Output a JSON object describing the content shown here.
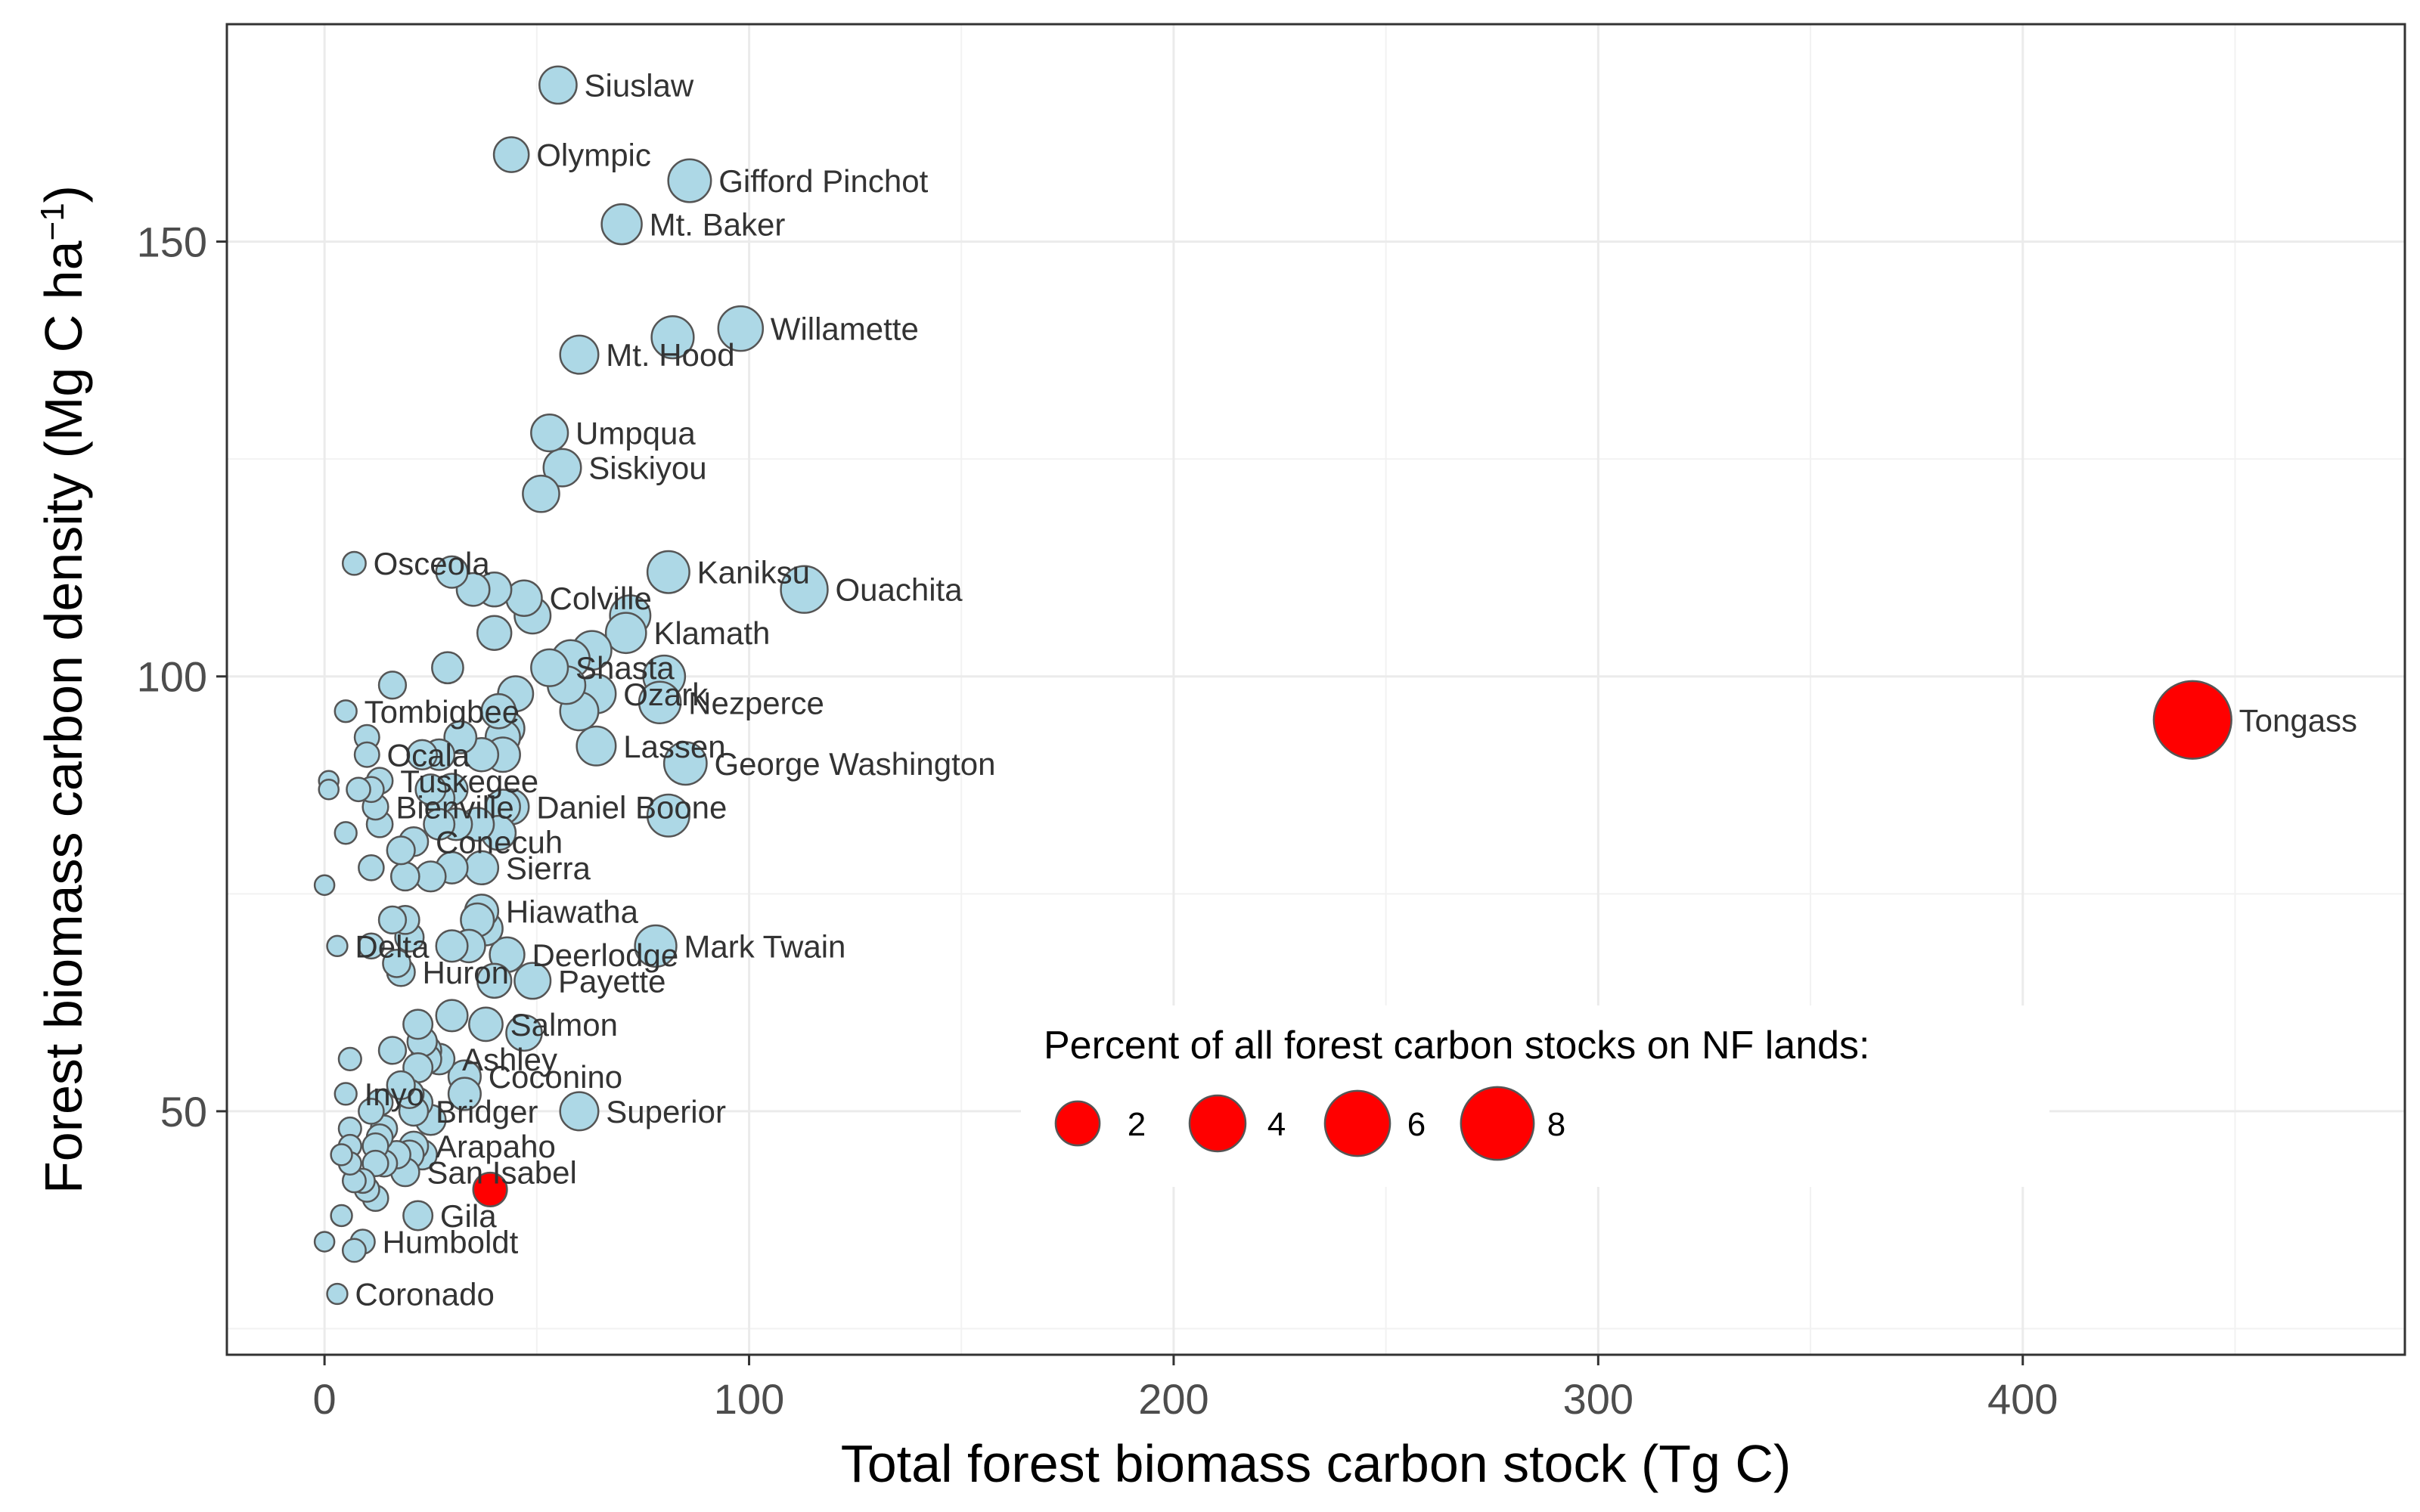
{
  "chart_data": {
    "type": "scatter",
    "xlabel": "Total forest biomass carbon stock (Tg C)",
    "ylabel": "Forest biomass carbon density (Mg C ha",
    "ylabel_sup": "−1",
    "ylabel_close": ")",
    "xlim": [
      -23,
      490
    ],
    "ylim": [
      22,
      175
    ],
    "x_ticks": [
      0,
      100,
      200,
      300,
      400
    ],
    "y_ticks": [
      50,
      100,
      150
    ],
    "grid": true,
    "default_color": "#add8e6",
    "highlight_color": "#ff0000",
    "outline_color": "#555555",
    "legend": {
      "title": "Percent of all forest carbon stocks on NF lands:",
      "placement": "bottom-right",
      "entries": [
        {
          "label": "2",
          "value": 2
        },
        {
          "label": "4",
          "value": 4
        },
        {
          "label": "6",
          "value": 6
        },
        {
          "label": "8",
          "value": 8
        }
      ]
    },
    "points": [
      {
        "x": 55,
        "y": 168,
        "label": "Siuslaw"
      },
      {
        "x": 44,
        "y": 160,
        "label": "Olympic"
      },
      {
        "x": 86,
        "y": 157,
        "label": "Gifford Pinchot"
      },
      {
        "x": 70,
        "y": 152,
        "label": "Mt. Baker"
      },
      {
        "x": 98,
        "y": 140,
        "label": "Willamette"
      },
      {
        "x": 82,
        "y": 139
      },
      {
        "x": 60,
        "y": 137,
        "label": "Mt. Hood"
      },
      {
        "x": 53,
        "y": 128,
        "label": "Umpqua"
      },
      {
        "x": 56,
        "y": 124,
        "label": "Siskiyou"
      },
      {
        "x": 51,
        "y": 121
      },
      {
        "x": 7,
        "y": 113,
        "label": "Osceola"
      },
      {
        "x": 30,
        "y": 112
      },
      {
        "x": 35,
        "y": 110
      },
      {
        "x": 40,
        "y": 110
      },
      {
        "x": 47,
        "y": 109,
        "label": "Colville"
      },
      {
        "x": 81,
        "y": 112,
        "label": "Kaniksu"
      },
      {
        "x": 113,
        "y": 110,
        "label": "Ouachita"
      },
      {
        "x": 49,
        "y": 107
      },
      {
        "x": 72,
        "y": 107
      },
      {
        "x": 40,
        "y": 105
      },
      {
        "x": 71,
        "y": 105,
        "label": "Klamath"
      },
      {
        "x": 63,
        "y": 103
      },
      {
        "x": 58,
        "y": 102
      },
      {
        "x": 53,
        "y": 101,
        "label": "Shasta"
      },
      {
        "x": 29,
        "y": 101
      },
      {
        "x": 80,
        "y": 100
      },
      {
        "x": 16,
        "y": 99
      },
      {
        "x": 57,
        "y": 99
      },
      {
        "x": 64,
        "y": 98,
        "label": "Ozark"
      },
      {
        "x": 45,
        "y": 98
      },
      {
        "x": 79,
        "y": 97,
        "label": "Nezperce"
      },
      {
        "x": 60,
        "y": 96
      },
      {
        "x": 41,
        "y": 96
      },
      {
        "x": 5,
        "y": 96,
        "label": "Tombigbee"
      },
      {
        "x": 43,
        "y": 94
      },
      {
        "x": 42,
        "y": 93
      },
      {
        "x": 10,
        "y": 93
      },
      {
        "x": 32,
        "y": 93
      },
      {
        "x": 64,
        "y": 92,
        "label": "Lassen"
      },
      {
        "x": 10,
        "y": 91,
        "label": "Ocala"
      },
      {
        "x": 23,
        "y": 91
      },
      {
        "x": 27,
        "y": 91
      },
      {
        "x": 37,
        "y": 91
      },
      {
        "x": 42,
        "y": 91
      },
      {
        "x": 85,
        "y": 90,
        "label": "George Washington"
      },
      {
        "x": 1,
        "y": 88
      },
      {
        "x": 1,
        "y": 87
      },
      {
        "x": 13,
        "y": 88,
        "label": "Tuskegee"
      },
      {
        "x": 8,
        "y": 87
      },
      {
        "x": 11,
        "y": 87
      },
      {
        "x": 25,
        "y": 87
      },
      {
        "x": 30,
        "y": 87
      },
      {
        "x": 27,
        "y": 86
      },
      {
        "x": 12,
        "y": 85,
        "label": "Bienville"
      },
      {
        "x": 42,
        "y": 85
      },
      {
        "x": 44,
        "y": 85,
        "label": "Daniel Boone"
      },
      {
        "x": 81,
        "y": 84
      },
      {
        "x": 13,
        "y": 83
      },
      {
        "x": 27,
        "y": 83
      },
      {
        "x": 31,
        "y": 83
      },
      {
        "x": 36,
        "y": 83
      },
      {
        "x": 41,
        "y": 82
      },
      {
        "x": 5,
        "y": 82
      },
      {
        "x": 21,
        "y": 81,
        "label": "Conecuh"
      },
      {
        "x": 18,
        "y": 80
      },
      {
        "x": 11,
        "y": 78
      },
      {
        "x": 30,
        "y": 78
      },
      {
        "x": 37,
        "y": 78,
        "label": "Sierra"
      },
      {
        "x": 19,
        "y": 77
      },
      {
        "x": 25,
        "y": 77
      },
      {
        "x": 0,
        "y": 76
      },
      {
        "x": 37,
        "y": 73,
        "label": "Hiawatha"
      },
      {
        "x": 36,
        "y": 72
      },
      {
        "x": 16,
        "y": 72
      },
      {
        "x": 19,
        "y": 72
      },
      {
        "x": 38,
        "y": 71
      },
      {
        "x": 20,
        "y": 70
      },
      {
        "x": 78,
        "y": 69,
        "label": "Mark Twain"
      },
      {
        "x": 34,
        "y": 69
      },
      {
        "x": 3,
        "y": 69,
        "label": "Delta"
      },
      {
        "x": 11,
        "y": 69
      },
      {
        "x": 30,
        "y": 69
      },
      {
        "x": 43,
        "y": 68,
        "label": "Deerlodge"
      },
      {
        "x": 17,
        "y": 67
      },
      {
        "x": 18,
        "y": 66,
        "label": "Huron"
      },
      {
        "x": 40,
        "y": 65
      },
      {
        "x": 49,
        "y": 65,
        "label": "Payette"
      },
      {
        "x": 30,
        "y": 61
      },
      {
        "x": 22,
        "y": 60
      },
      {
        "x": 38,
        "y": 60,
        "label": "Salmon"
      },
      {
        "x": 47,
        "y": 59
      },
      {
        "x": 23,
        "y": 58
      },
      {
        "x": 24,
        "y": 57
      },
      {
        "x": 16,
        "y": 57
      },
      {
        "x": 24,
        "y": 56
      },
      {
        "x": 27,
        "y": 56,
        "label": "Ashley"
      },
      {
        "x": 6,
        "y": 56
      },
      {
        "x": 22,
        "y": 55
      },
      {
        "x": 33,
        "y": 54,
        "label": "Coconino"
      },
      {
        "x": 18,
        "y": 53
      },
      {
        "x": 5,
        "y": 52,
        "label": "Inyo"
      },
      {
        "x": 20,
        "y": 52
      },
      {
        "x": 33,
        "y": 52
      },
      {
        "x": 22,
        "y": 51
      },
      {
        "x": 13,
        "y": 51
      },
      {
        "x": 21,
        "y": 50,
        "label": "Bridger"
      },
      {
        "x": 11,
        "y": 50
      },
      {
        "x": 60,
        "y": 50,
        "label": "Superior"
      },
      {
        "x": 25,
        "y": 49
      },
      {
        "x": 6,
        "y": 48
      },
      {
        "x": 14,
        "y": 48
      },
      {
        "x": 13,
        "y": 47
      },
      {
        "x": 21,
        "y": 46,
        "label": "Arapaho"
      },
      {
        "x": 6,
        "y": 46
      },
      {
        "x": 12,
        "y": 46
      },
      {
        "x": 17,
        "y": 45
      },
      {
        "x": 20,
        "y": 45
      },
      {
        "x": 23,
        "y": 45
      },
      {
        "x": 4,
        "y": 45
      },
      {
        "x": 6,
        "y": 44
      },
      {
        "x": 12,
        "y": 44
      },
      {
        "x": 14,
        "y": 44
      },
      {
        "x": 19,
        "y": 43,
        "label": "San Isabel"
      },
      {
        "x": 7,
        "y": 42
      },
      {
        "x": 9,
        "y": 42
      },
      {
        "x": 10,
        "y": 41
      },
      {
        "x": 12,
        "y": 40
      },
      {
        "x": 39,
        "y": 41,
        "color": "#ff0000"
      },
      {
        "x": 22,
        "y": 38,
        "label": "Gila"
      },
      {
        "x": 4,
        "y": 38
      },
      {
        "x": 9,
        "y": 35,
        "label": "Humboldt"
      },
      {
        "x": 7,
        "y": 34
      },
      {
        "x": 0,
        "y": 35
      },
      {
        "x": 3,
        "y": 29,
        "label": "Coronado"
      },
      {
        "x": 440,
        "y": 95,
        "label": "Tongass",
        "color": "#ff0000"
      }
    ]
  }
}
